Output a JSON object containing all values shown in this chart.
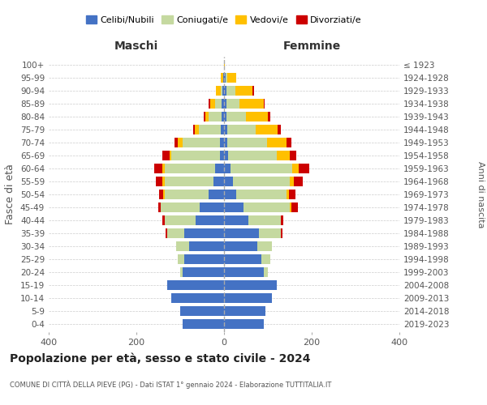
{
  "age_groups": [
    "0-4",
    "5-9",
    "10-14",
    "15-19",
    "20-24",
    "25-29",
    "30-34",
    "35-39",
    "40-44",
    "45-49",
    "50-54",
    "55-59",
    "60-64",
    "65-69",
    "70-74",
    "75-79",
    "80-84",
    "85-89",
    "90-94",
    "95-99",
    "100+"
  ],
  "birth_years": [
    "2019-2023",
    "2014-2018",
    "2009-2013",
    "2004-2008",
    "1999-2003",
    "1994-1998",
    "1989-1993",
    "1984-1988",
    "1979-1983",
    "1974-1978",
    "1969-1973",
    "1964-1968",
    "1959-1963",
    "1954-1958",
    "1949-1953",
    "1944-1948",
    "1939-1943",
    "1934-1938",
    "1929-1933",
    "1924-1928",
    "≤ 1923"
  ],
  "colors": {
    "celibi": "#4472c4",
    "coniugati": "#c5d9a0",
    "vedovi": "#ffc000",
    "divorziati": "#cc0000"
  },
  "males": {
    "celibi": [
      95,
      100,
      120,
      130,
      95,
      90,
      80,
      90,
      65,
      55,
      35,
      25,
      20,
      10,
      10,
      8,
      5,
      5,
      3,
      2,
      0
    ],
    "coniugati": [
      0,
      0,
      0,
      0,
      5,
      15,
      30,
      40,
      70,
      90,
      100,
      110,
      115,
      110,
      85,
      50,
      30,
      15,
      5,
      0,
      0
    ],
    "vedovi": [
      0,
      0,
      0,
      0,
      0,
      0,
      0,
      0,
      0,
      0,
      3,
      5,
      5,
      5,
      10,
      8,
      8,
      12,
      10,
      5,
      0
    ],
    "divorziati": [
      0,
      0,
      0,
      0,
      0,
      0,
      0,
      3,
      5,
      5,
      10,
      15,
      20,
      15,
      8,
      5,
      3,
      3,
      0,
      0,
      0
    ]
  },
  "females": {
    "nubili": [
      90,
      95,
      110,
      120,
      90,
      85,
      75,
      80,
      55,
      45,
      28,
      20,
      15,
      10,
      8,
      7,
      5,
      5,
      5,
      3,
      0
    ],
    "coniugate": [
      0,
      0,
      0,
      0,
      10,
      20,
      35,
      50,
      75,
      105,
      115,
      130,
      140,
      110,
      90,
      65,
      45,
      30,
      20,
      5,
      0
    ],
    "vedove": [
      0,
      0,
      0,
      0,
      0,
      0,
      0,
      0,
      0,
      3,
      5,
      10,
      15,
      30,
      45,
      50,
      50,
      55,
      40,
      20,
      2
    ],
    "divorziate": [
      0,
      0,
      0,
      0,
      0,
      0,
      0,
      3,
      5,
      15,
      15,
      20,
      25,
      15,
      10,
      8,
      5,
      3,
      3,
      0,
      0
    ]
  },
  "title": "Popolazione per età, sesso e stato civile - 2024",
  "subtitle": "COMUNE DI CITTÀ DELLA PIEVE (PG) - Dati ISTAT 1° gennaio 2024 - Elaborazione TUTTITALIA.IT",
  "xlabel_left": "Maschi",
  "xlabel_right": "Femmine",
  "ylabel_left": "Fasce di età",
  "ylabel_right": "Anni di nascita",
  "xlim": 400,
  "legend_labels": [
    "Celibi/Nubili",
    "Coniugati/e",
    "Vedovi/e",
    "Divorziati/e"
  ]
}
